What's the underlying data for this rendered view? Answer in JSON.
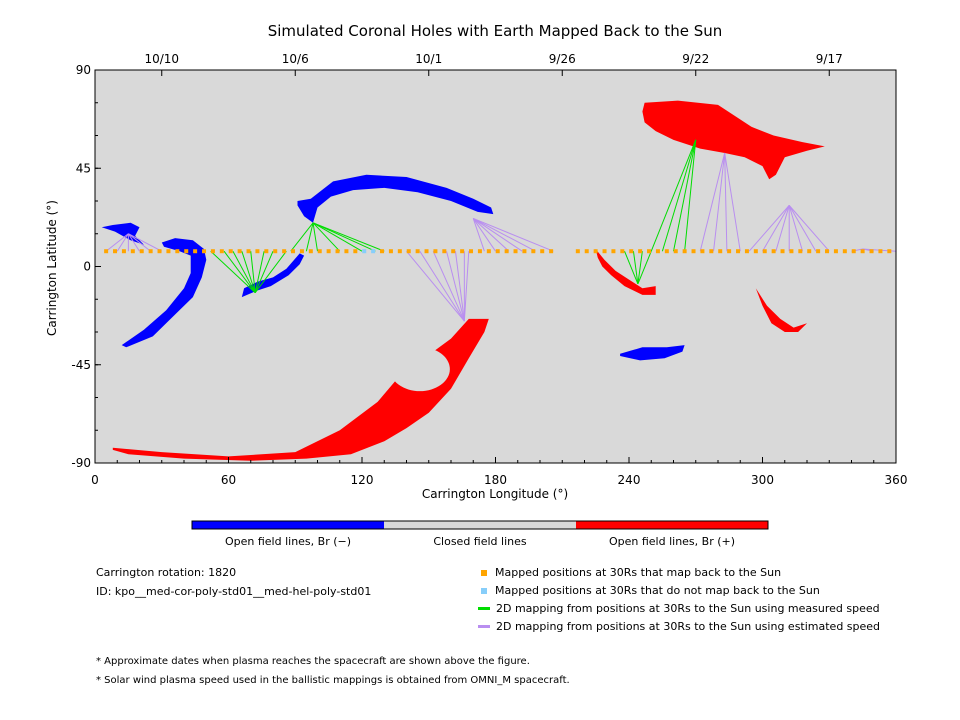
{
  "chart_data": {
    "type": "scatter",
    "title": "Simulated Coronal Holes with Earth Mapped Back to the Sun",
    "xlabel": "Carrington Longitude (°)",
    "ylabel": "Carrington Latitude (°)",
    "xlim": [
      0,
      360
    ],
    "ylim": [
      -90,
      90
    ],
    "xticks": [
      0,
      60,
      120,
      180,
      240,
      300,
      360
    ],
    "yticks": [
      -90,
      -45,
      0,
      45,
      90
    ],
    "top_axis_dates": [
      {
        "label": "10/10",
        "lon": 30
      },
      {
        "label": "10/6",
        "lon": 90
      },
      {
        "label": "10/1",
        "lon": 150
      },
      {
        "label": "9/26",
        "lon": 210
      },
      {
        "label": "9/22",
        "lon": 270
      },
      {
        "label": "9/17",
        "lon": 330
      }
    ],
    "background_color": "#d9d9d9",
    "colors": {
      "negative": "#0000ff",
      "positive": "#ff0000",
      "mapped": "#ffa500",
      "unmapped": "#87cefa",
      "measured": "#00dd00",
      "estimated": "#b98ef0",
      "closed": "#d9d9d9"
    },
    "colorbar_labels": [
      "Open field lines, Br (−)",
      "Closed field lines",
      "Open field lines, Br (+)"
    ],
    "coronal_holes": [
      {
        "polarity": "negative",
        "outline": [
          [
            3,
            18
          ],
          [
            8,
            19
          ],
          [
            16,
            20
          ],
          [
            20,
            18
          ],
          [
            18,
            14
          ],
          [
            22,
            10
          ],
          [
            16,
            12
          ],
          [
            9,
            16
          ],
          [
            3,
            18
          ]
        ]
      },
      {
        "polarity": "negative",
        "outline": [
          [
            30,
            11
          ],
          [
            36,
            13
          ],
          [
            44,
            12
          ],
          [
            49,
            8
          ],
          [
            50,
            3
          ],
          [
            48,
            -5
          ],
          [
            44,
            -14
          ],
          [
            36,
            -22
          ],
          [
            26,
            -32
          ],
          [
            14,
            -37
          ],
          [
            12,
            -36
          ],
          [
            22,
            -29
          ],
          [
            32,
            -20
          ],
          [
            40,
            -10
          ],
          [
            43,
            -3
          ],
          [
            43,
            5
          ],
          [
            38,
            7
          ],
          [
            31,
            9
          ]
        ]
      },
      {
        "polarity": "negative",
        "outline": [
          [
            66,
            -14
          ],
          [
            73,
            -11
          ],
          [
            79,
            -9
          ],
          [
            87,
            -4
          ],
          [
            92,
            1
          ],
          [
            94,
            5
          ],
          [
            92,
            6
          ],
          [
            86,
            -1
          ],
          [
            80,
            -5
          ],
          [
            73,
            -7
          ],
          [
            67,
            -10
          ]
        ]
      },
      {
        "polarity": "negative",
        "outline": [
          [
            91,
            30
          ],
          [
            97,
            31
          ],
          [
            107,
            39
          ],
          [
            122,
            42
          ],
          [
            140,
            41
          ],
          [
            158,
            36
          ],
          [
            170,
            31
          ],
          [
            178,
            27
          ],
          [
            179,
            24
          ],
          [
            172,
            25
          ],
          [
            160,
            30
          ],
          [
            145,
            34
          ],
          [
            130,
            36
          ],
          [
            116,
            35
          ],
          [
            106,
            32
          ],
          [
            100,
            27
          ],
          [
            98,
            20
          ],
          [
            94,
            23
          ],
          [
            91,
            28
          ]
        ]
      },
      {
        "polarity": "negative",
        "outline": [
          [
            236,
            -40
          ],
          [
            246,
            -37
          ],
          [
            257,
            -37
          ],
          [
            265,
            -36
          ],
          [
            264,
            -39
          ],
          [
            256,
            -42
          ],
          [
            245,
            -43
          ],
          [
            236,
            -41
          ]
        ]
      },
      {
        "polarity": "positive",
        "outline": [
          [
            8,
            -83
          ],
          [
            30,
            -85
          ],
          [
            60,
            -87
          ],
          [
            90,
            -85
          ],
          [
            110,
            -75
          ],
          [
            127,
            -62
          ],
          [
            137,
            -50
          ],
          [
            148,
            -42
          ],
          [
            160,
            -33
          ],
          [
            168,
            -24
          ],
          [
            177,
            -24
          ],
          [
            175,
            -30
          ],
          [
            168,
            -42
          ],
          [
            160,
            -56
          ],
          [
            150,
            -67
          ],
          [
            140,
            -74
          ],
          [
            130,
            -80
          ],
          [
            115,
            -86
          ],
          [
            95,
            -88
          ],
          [
            70,
            -89
          ],
          [
            40,
            -88
          ],
          [
            15,
            -86
          ],
          [
            8,
            -84
          ]
        ]
      },
      {
        "polarity": "positive",
        "outline": [
          [
            225,
            8
          ],
          [
            229,
            3
          ],
          [
            234,
            -2
          ],
          [
            240,
            -6
          ],
          [
            246,
            -10
          ],
          [
            252,
            -9
          ],
          [
            252,
            -13
          ],
          [
            246,
            -13
          ],
          [
            238,
            -9
          ],
          [
            232,
            -4
          ],
          [
            228,
            0
          ],
          [
            226,
            4
          ]
        ]
      },
      {
        "polarity": "positive",
        "outline": [
          [
            247,
            75
          ],
          [
            262,
            76
          ],
          [
            280,
            74
          ],
          [
            295,
            64
          ],
          [
            305,
            60
          ],
          [
            318,
            57
          ],
          [
            328,
            55
          ],
          [
            320,
            53
          ],
          [
            310,
            50
          ],
          [
            306,
            42
          ],
          [
            303,
            40
          ],
          [
            300,
            46
          ],
          [
            292,
            50
          ],
          [
            283,
            52
          ],
          [
            272,
            54
          ],
          [
            260,
            58
          ],
          [
            252,
            62
          ],
          [
            247,
            66
          ],
          [
            246,
            71
          ]
        ]
      },
      {
        "polarity": "positive",
        "outline": [
          [
            297,
            -10
          ],
          [
            302,
            -18
          ],
          [
            308,
            -24
          ],
          [
            314,
            -28
          ],
          [
            320,
            -26
          ],
          [
            316,
            -30
          ],
          [
            310,
            -30
          ],
          [
            304,
            -26
          ],
          [
            300,
            -18
          ],
          [
            297,
            -10
          ]
        ]
      }
    ],
    "mapped_points_note": "footpoints along latitude 7 from 5 to 360 deg, projected field lines to coronal holes"
  }
}
